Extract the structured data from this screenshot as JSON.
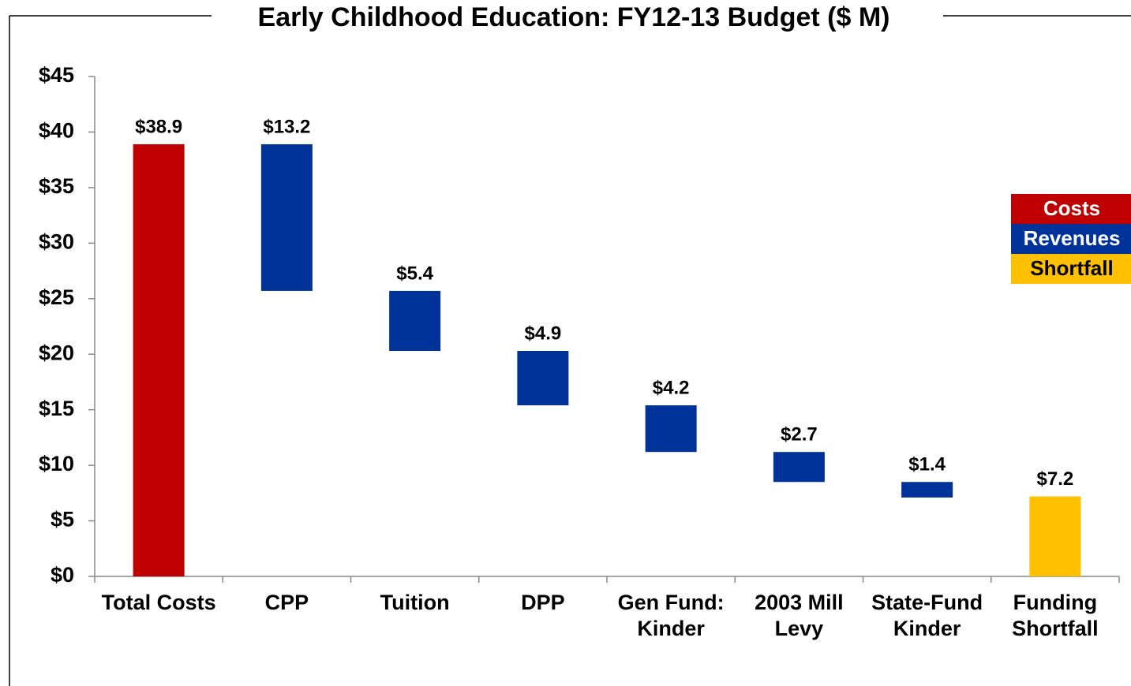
{
  "chart_data": {
    "type": "waterfall",
    "title": "Early Childhood Education: FY12-13 Budget ($ M)",
    "categories": [
      "Total Costs",
      "CPP",
      "Tuition",
      "DPP",
      "Gen Fund: Kinder",
      "2003 Mill Levy",
      "State-Fund Kinder",
      "Funding Shortfall"
    ],
    "values": [
      38.9,
      13.2,
      5.4,
      4.9,
      4.2,
      2.7,
      1.4,
      7.2
    ],
    "value_labels": [
      "$38.9",
      "$13.2",
      "$5.4",
      "$4.9",
      "$4.2",
      "$2.7",
      "$1.4",
      "$7.2"
    ],
    "measure": [
      "absolute",
      "decrease",
      "decrease",
      "decrease",
      "decrease",
      "decrease",
      "decrease",
      "absolute"
    ],
    "colors": [
      "#c00000",
      "#003399",
      "#003399",
      "#003399",
      "#003399",
      "#003399",
      "#003399",
      "#ffc000"
    ],
    "legend": [
      {
        "name": "Costs",
        "color": "#c00000"
      },
      {
        "name": "Revenues",
        "color": "#003399"
      },
      {
        "name": "Shortfall",
        "color": "#ffc000"
      }
    ],
    "legend_position": "right",
    "ylim": [
      0,
      45
    ],
    "yticks": [
      {
        "value": 0,
        "label": "$0"
      },
      {
        "value": 5,
        "label": "$5"
      },
      {
        "value": 10,
        "label": "$10"
      },
      {
        "value": 15,
        "label": "$15"
      },
      {
        "value": 20,
        "label": "$20"
      },
      {
        "value": 25,
        "label": "$25"
      },
      {
        "value": 30,
        "label": "$30"
      },
      {
        "value": 35,
        "label": "$35"
      },
      {
        "value": 40,
        "label": "$40"
      },
      {
        "value": 45,
        "label": "$45"
      }
    ]
  }
}
